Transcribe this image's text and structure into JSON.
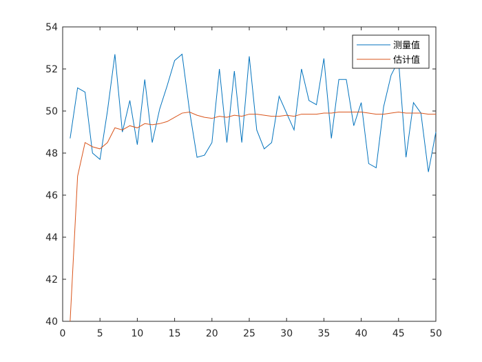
{
  "chart_data": {
    "type": "line",
    "xlim": [
      0,
      50
    ],
    "ylim": [
      40,
      54
    ],
    "x_ticks": [
      0,
      5,
      10,
      15,
      20,
      25,
      30,
      35,
      40,
      45,
      50
    ],
    "y_ticks": [
      40,
      42,
      44,
      46,
      48,
      50,
      52,
      54
    ],
    "grid": false,
    "legend_position": "top-right",
    "x": [
      1,
      2,
      3,
      4,
      5,
      6,
      7,
      8,
      9,
      10,
      11,
      12,
      13,
      14,
      15,
      16,
      17,
      18,
      19,
      20,
      21,
      22,
      23,
      24,
      25,
      26,
      27,
      28,
      29,
      30,
      31,
      32,
      33,
      34,
      35,
      36,
      37,
      38,
      39,
      40,
      41,
      42,
      43,
      44,
      45,
      46,
      47,
      48,
      49,
      50
    ],
    "series": [
      {
        "name": "测量值",
        "color": "#0072BD",
        "values": [
          48.7,
          51.1,
          50.9,
          48.0,
          47.7,
          50.0,
          52.7,
          49.0,
          50.5,
          48.4,
          51.5,
          48.5,
          50.1,
          51.2,
          52.4,
          52.7,
          50.0,
          47.8,
          47.9,
          48.5,
          52.0,
          48.5,
          51.9,
          48.5,
          52.6,
          49.1,
          48.2,
          48.5,
          50.7,
          49.9,
          49.1,
          52.0,
          50.5,
          50.3,
          52.5,
          48.7,
          51.5,
          51.5,
          49.3,
          50.4,
          47.5,
          47.3,
          50.2,
          51.7,
          52.4,
          47.8,
          50.4,
          49.9,
          47.1,
          49.0
        ]
      },
      {
        "name": "估计值",
        "color": "#D95319",
        "values": [
          40.0,
          46.9,
          48.5,
          48.3,
          48.2,
          48.5,
          49.2,
          49.1,
          49.3,
          49.2,
          49.4,
          49.35,
          49.4,
          49.5,
          49.7,
          49.9,
          49.95,
          49.8,
          49.7,
          49.65,
          49.75,
          49.7,
          49.8,
          49.75,
          49.85,
          49.85,
          49.8,
          49.75,
          49.75,
          49.8,
          49.75,
          49.85,
          49.85,
          49.85,
          49.9,
          49.9,
          49.95,
          49.95,
          49.95,
          49.95,
          49.9,
          49.85,
          49.85,
          49.9,
          49.95,
          49.9,
          49.9,
          49.9,
          49.85,
          49.85
        ]
      }
    ]
  }
}
